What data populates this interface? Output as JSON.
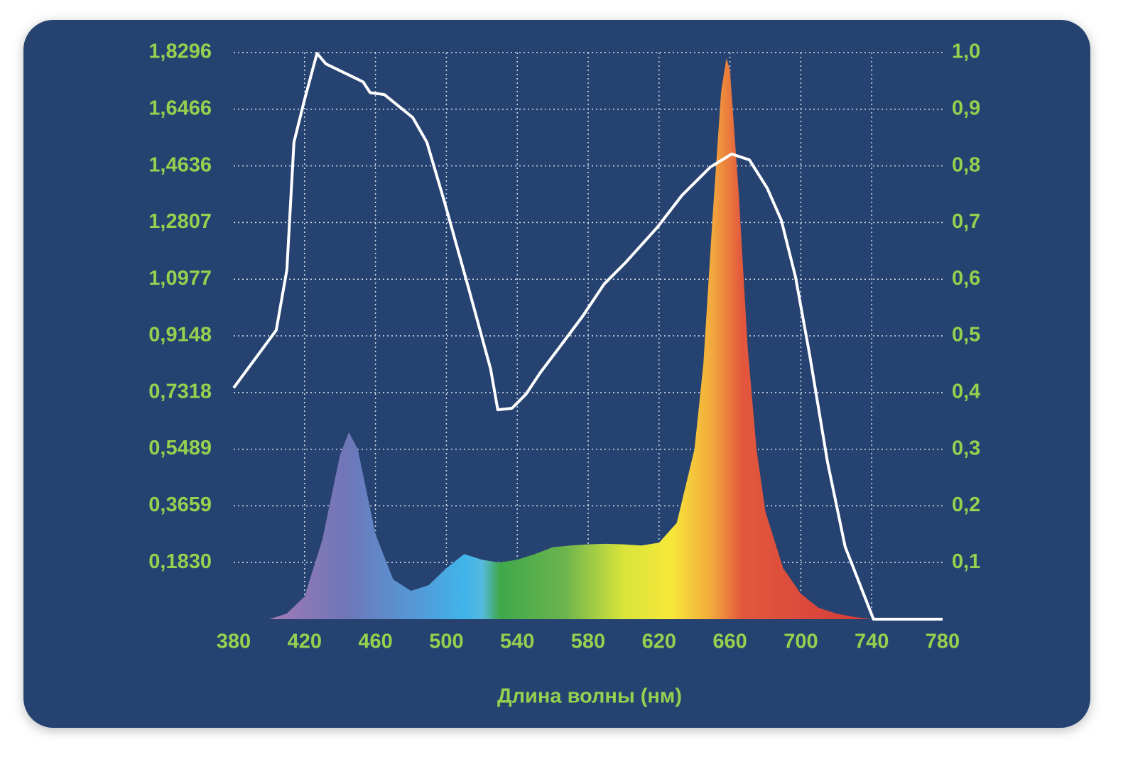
{
  "chart_data": {
    "type": "line",
    "x_label": "Длина волны (нм)",
    "xlim": [
      380,
      780
    ],
    "xticks": [
      380,
      420,
      460,
      500,
      540,
      580,
      620,
      660,
      700,
      740,
      780
    ],
    "ylim": [
      0,
      1.8296
    ],
    "yticks": [
      {
        "value": 0.183,
        "label": "0,1830"
      },
      {
        "value": 0.3659,
        "label": "0,3659"
      },
      {
        "value": 0.5489,
        "label": "0,5489"
      },
      {
        "value": 0.7318,
        "label": "0,7318"
      },
      {
        "value": 0.9148,
        "label": "0,9148"
      },
      {
        "value": 1.0977,
        "label": "1,0977"
      },
      {
        "value": 1.2807,
        "label": "1,2807"
      },
      {
        "value": 1.4636,
        "label": "1,4636"
      },
      {
        "value": 1.6466,
        "label": "1,6466"
      },
      {
        "value": 1.8296,
        "label": "1,8296"
      }
    ],
    "y2lim": [
      0,
      1.0
    ],
    "y2ticks": [
      {
        "value": 0.1,
        "label": "0,1"
      },
      {
        "value": 0.2,
        "label": "0,2"
      },
      {
        "value": 0.3,
        "label": "0,3"
      },
      {
        "value": 0.4,
        "label": "0,4"
      },
      {
        "value": 0.5,
        "label": "0,5"
      },
      {
        "value": 0.6,
        "label": "0,6"
      },
      {
        "value": 0.7,
        "label": "0,7"
      },
      {
        "value": 0.8,
        "label": "0,8"
      },
      {
        "value": 0.9,
        "label": "0,9"
      },
      {
        "value": 1.0,
        "label": "1,0"
      }
    ],
    "grid": true,
    "series": [
      {
        "type": "area",
        "axis": "y2",
        "x": [
          400,
          410,
          420,
          430,
          440,
          445,
          450,
          460,
          470,
          480,
          490,
          500,
          510,
          520,
          530,
          540,
          550,
          560,
          570,
          580,
          590,
          600,
          610,
          620,
          630,
          640,
          645,
          650,
          655,
          658,
          660,
          665,
          670,
          675,
          680,
          690,
          700,
          710,
          720,
          730,
          740
        ],
        "values": [
          0,
          0.01,
          0.04,
          0.14,
          0.29,
          0.33,
          0.3,
          0.15,
          0.07,
          0.05,
          0.06,
          0.09,
          0.115,
          0.105,
          0.1,
          0.105,
          0.115,
          0.127,
          0.13,
          0.132,
          0.133,
          0.132,
          0.13,
          0.135,
          0.17,
          0.3,
          0.45,
          0.7,
          0.93,
          0.99,
          0.97,
          0.75,
          0.48,
          0.3,
          0.19,
          0.09,
          0.045,
          0.02,
          0.01,
          0.004,
          0
        ]
      },
      {
        "type": "line",
        "axis": "y",
        "color": "#ffffff",
        "x": [
          380,
          404,
          410,
          414,
          420,
          427,
          432,
          453,
          457,
          465,
          481,
          489,
          499,
          513,
          525,
          529,
          537,
          545,
          553,
          565,
          577,
          589,
          601,
          619,
          633,
          649,
          661,
          671,
          681,
          689,
          697,
          705,
          715,
          725,
          741,
          780
        ],
        "values": [
          0.747,
          0.933,
          1.128,
          1.54,
          1.678,
          1.827,
          1.793,
          1.735,
          1.7,
          1.694,
          1.62,
          1.54,
          1.346,
          1.059,
          0.807,
          0.676,
          0.681,
          0.727,
          0.796,
          0.887,
          0.979,
          1.082,
          1.151,
          1.265,
          1.369,
          1.46,
          1.502,
          1.483,
          1.392,
          1.288,
          1.105,
          0.853,
          0.509,
          0.234,
          0,
          0
        ]
      }
    ]
  }
}
